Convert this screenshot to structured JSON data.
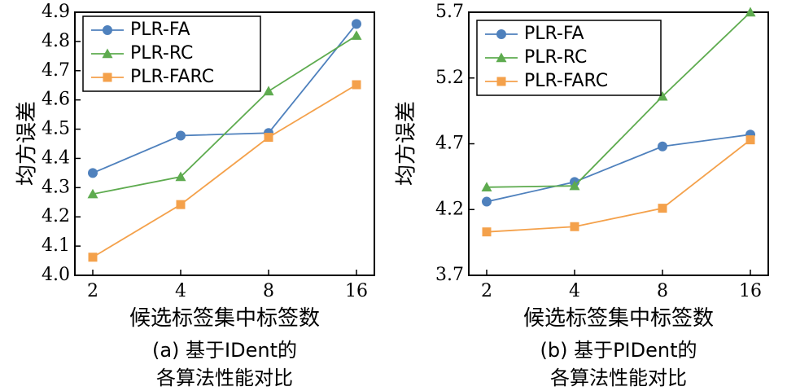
{
  "chart_data": [
    {
      "type": "line",
      "x": [
        "2",
        "4",
        "8",
        "16"
      ],
      "ylim": [
        4.0,
        4.9
      ],
      "yticks": [
        "4.0",
        "4.1",
        "4.2",
        "4.3",
        "4.4",
        "4.5",
        "4.6",
        "4.7",
        "4.8",
        "4.9"
      ],
      "ylabel": "均方误差",
      "xlabel": "候选标签集中标签数",
      "caption_line1": "(a) 基于IDent的",
      "caption_line2": "各算法性能对比",
      "legend_position": "top-left",
      "series": [
        {
          "name": "PLR-FA",
          "marker": "circle",
          "color": "#4f81bd",
          "values": [
            4.35,
            4.478,
            4.487,
            4.86
          ]
        },
        {
          "name": "PLR-RC",
          "marker": "triangle",
          "color": "#5eab4f",
          "values": [
            4.278,
            4.337,
            4.63,
            4.82
          ]
        },
        {
          "name": "PLR-FARC",
          "marker": "square",
          "color": "#f4a14b",
          "values": [
            4.062,
            4.242,
            4.472,
            4.652
          ]
        }
      ]
    },
    {
      "type": "line",
      "x": [
        "2",
        "4",
        "8",
        "16"
      ],
      "ylim": [
        3.7,
        5.7
      ],
      "yticks": [
        "3.7",
        "4.2",
        "4.7",
        "5.2",
        "5.7"
      ],
      "ylabel": "均方误差",
      "xlabel": "候选标签集中标签数",
      "caption_line1": "(b) 基于PIDent的",
      "caption_line2": "各算法性能对比",
      "legend_position": "top-left",
      "series": [
        {
          "name": "PLR-FA",
          "marker": "circle",
          "color": "#4f81bd",
          "values": [
            4.26,
            4.41,
            4.68,
            4.77
          ]
        },
        {
          "name": "PLR-RC",
          "marker": "triangle",
          "color": "#5eab4f",
          "values": [
            4.37,
            4.38,
            5.06,
            5.7
          ]
        },
        {
          "name": "PLR-FARC",
          "marker": "square",
          "color": "#f4a14b",
          "values": [
            4.03,
            4.07,
            4.21,
            4.73
          ]
        }
      ]
    }
  ]
}
